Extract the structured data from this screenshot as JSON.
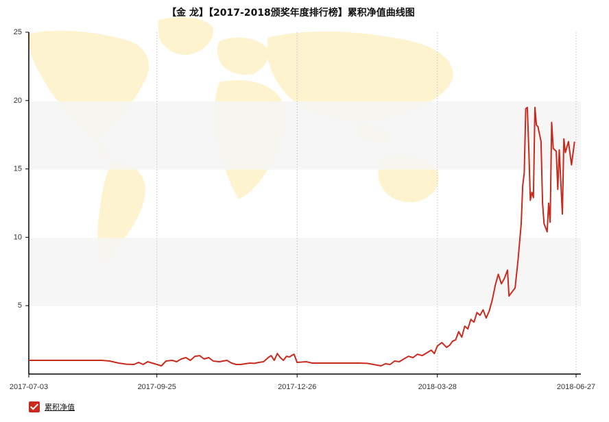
{
  "chart_data": {
    "type": "line",
    "title": "【金 龙】【2017-2018颁奖年度排行榜】累积净值曲线图",
    "xlabel": "",
    "ylabel": "",
    "x_ticks": [
      "2017-07-03",
      "2017-09-25",
      "2017-12-26",
      "2018-03-28",
      "2018-06-27"
    ],
    "y_ticks": [
      "5",
      "10",
      "15",
      "20",
      "25"
    ],
    "ylim": [
      0,
      25
    ],
    "grid": "vertical dotted at x ticks, alternating horizontal bands",
    "legend_position": "bottom-left",
    "background_image": "world-map-watermark",
    "series": [
      {
        "name": "累积净值",
        "color": "#c92a1d",
        "points": [
          [
            "2017-07-03",
            1.0
          ],
          [
            "2017-08-01",
            1.0
          ],
          [
            "2017-08-20",
            1.0
          ],
          [
            "2017-08-25",
            0.95
          ],
          [
            "2017-08-31",
            0.8
          ],
          [
            "2017-09-05",
            0.72
          ],
          [
            "2017-09-10",
            0.7
          ],
          [
            "2017-09-13",
            0.85
          ],
          [
            "2017-09-16",
            0.7
          ],
          [
            "2017-09-19",
            0.9
          ],
          [
            "2017-09-22",
            0.8
          ],
          [
            "2017-09-25",
            0.7
          ],
          [
            "2017-09-28",
            0.6
          ],
          [
            "2017-10-01",
            0.95
          ],
          [
            "2017-10-05",
            1.0
          ],
          [
            "2017-10-08",
            0.9
          ],
          [
            "2017-10-11",
            1.1
          ],
          [
            "2017-10-14",
            1.2
          ],
          [
            "2017-10-17",
            1.0
          ],
          [
            "2017-10-20",
            1.3
          ],
          [
            "2017-10-23",
            1.35
          ],
          [
            "2017-10-26",
            1.1
          ],
          [
            "2017-10-29",
            1.2
          ],
          [
            "2017-11-01",
            0.95
          ],
          [
            "2017-11-05",
            0.9
          ],
          [
            "2017-11-10",
            1.0
          ],
          [
            "2017-11-13",
            0.8
          ],
          [
            "2017-11-16",
            0.7
          ],
          [
            "2017-11-19",
            0.7
          ],
          [
            "2017-11-22",
            0.75
          ],
          [
            "2017-11-25",
            0.8
          ],
          [
            "2017-11-28",
            0.78
          ],
          [
            "2017-12-01",
            0.85
          ],
          [
            "2017-12-04",
            0.9
          ],
          [
            "2017-12-07",
            1.2
          ],
          [
            "2017-12-09",
            1.35
          ],
          [
            "2017-12-11",
            1.0
          ],
          [
            "2017-12-13",
            1.5
          ],
          [
            "2017-12-15",
            1.2
          ],
          [
            "2017-12-17",
            1.0
          ],
          [
            "2017-12-19",
            1.3
          ],
          [
            "2017-12-21",
            1.25
          ],
          [
            "2017-12-23",
            1.4
          ],
          [
            "2017-12-24",
            1.45
          ],
          [
            "2017-12-26",
            0.85
          ],
          [
            "2018-01-01",
            0.9
          ],
          [
            "2018-01-05",
            0.8
          ],
          [
            "2018-01-20",
            0.8
          ],
          [
            "2018-02-05",
            0.8
          ],
          [
            "2018-02-10",
            0.78
          ],
          [
            "2018-02-14",
            0.7
          ],
          [
            "2018-02-19",
            0.6
          ],
          [
            "2018-02-22",
            0.75
          ],
          [
            "2018-02-25",
            0.7
          ],
          [
            "2018-02-28",
            0.95
          ],
          [
            "2018-03-03",
            0.9
          ],
          [
            "2018-03-06",
            1.1
          ],
          [
            "2018-03-09",
            1.3
          ],
          [
            "2018-03-12",
            1.2
          ],
          [
            "2018-03-15",
            1.45
          ],
          [
            "2018-03-18",
            1.35
          ],
          [
            "2018-03-21",
            1.55
          ],
          [
            "2018-03-24",
            1.75
          ],
          [
            "2018-03-26",
            1.5
          ],
          [
            "2018-03-28",
            2.05
          ],
          [
            "2018-03-31",
            2.3
          ],
          [
            "2018-04-03",
            1.95
          ],
          [
            "2018-04-05",
            2.1
          ],
          [
            "2018-04-07",
            2.4
          ],
          [
            "2018-04-09",
            2.5
          ],
          [
            "2018-04-11",
            3.1
          ],
          [
            "2018-04-13",
            2.7
          ],
          [
            "2018-04-15",
            3.5
          ],
          [
            "2018-04-17",
            3.3
          ],
          [
            "2018-04-19",
            4.0
          ],
          [
            "2018-04-21",
            3.8
          ],
          [
            "2018-04-23",
            4.5
          ],
          [
            "2018-04-25",
            4.3
          ],
          [
            "2018-04-27",
            4.7
          ],
          [
            "2018-04-29",
            4.1
          ],
          [
            "2018-05-01",
            4.6
          ],
          [
            "2018-05-03",
            5.4
          ],
          [
            "2018-05-05",
            6.5
          ],
          [
            "2018-05-07",
            7.3
          ],
          [
            "2018-05-09",
            6.6
          ],
          [
            "2018-05-11",
            7.0
          ],
          [
            "2018-05-13",
            7.6
          ],
          [
            "2018-05-14",
            5.7
          ],
          [
            "2018-05-16",
            6.0
          ],
          [
            "2018-05-18",
            6.3
          ],
          [
            "2018-05-20",
            8.4
          ],
          [
            "2018-05-22",
            11.0
          ],
          [
            "2018-05-23",
            13.8
          ],
          [
            "2018-05-24",
            14.7
          ],
          [
            "2018-05-25",
            19.4
          ],
          [
            "2018-05-26",
            19.5
          ],
          [
            "2018-05-27",
            16.4
          ],
          [
            "2018-05-28",
            12.7
          ],
          [
            "2018-05-29",
            13.3
          ],
          [
            "2018-05-30",
            12.9
          ],
          [
            "2018-05-31",
            19.5
          ],
          [
            "2018-06-01",
            18.2
          ],
          [
            "2018-06-02",
            18.1
          ],
          [
            "2018-06-04",
            17.0
          ],
          [
            "2018-06-05",
            12.5
          ],
          [
            "2018-06-06",
            11.0
          ],
          [
            "2018-06-08",
            10.4
          ],
          [
            "2018-06-09",
            12.5
          ],
          [
            "2018-06-10",
            11.1
          ],
          [
            "2018-06-11",
            18.4
          ],
          [
            "2018-06-12",
            16.5
          ],
          [
            "2018-06-14",
            16.3
          ],
          [
            "2018-06-15",
            13.5
          ],
          [
            "2018-06-16",
            16.4
          ],
          [
            "2018-06-18",
            11.7
          ],
          [
            "2018-06-19",
            17.2
          ],
          [
            "2018-06-20",
            16.2
          ],
          [
            "2018-06-22",
            17.0
          ],
          [
            "2018-06-24",
            15.3
          ],
          [
            "2018-06-26",
            17.0
          ]
        ]
      }
    ]
  }
}
